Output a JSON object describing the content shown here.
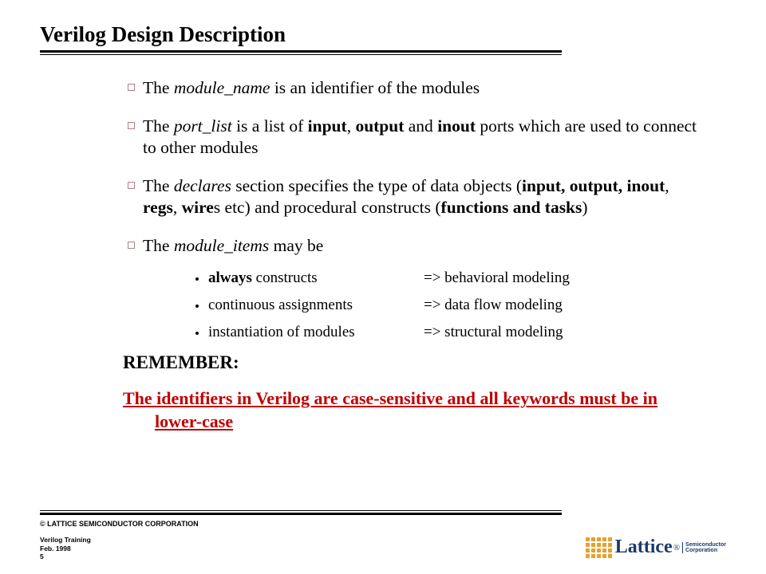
{
  "title": "Verilog Design Description",
  "bullets": [
    {
      "segments": [
        {
          "t": "The ",
          "i": false,
          "b": false
        },
        {
          "t": "module_name",
          "i": true,
          "b": false
        },
        {
          "t": " is an identifier of the modules",
          "i": false,
          "b": false
        }
      ]
    },
    {
      "segments": [
        {
          "t": "The ",
          "i": false,
          "b": false
        },
        {
          "t": "port_list",
          "i": true,
          "b": false
        },
        {
          "t": " is a list of ",
          "i": false,
          "b": false
        },
        {
          "t": "input",
          "i": false,
          "b": true
        },
        {
          "t": ", ",
          "i": false,
          "b": false
        },
        {
          "t": "output",
          "i": false,
          "b": true
        },
        {
          "t": " and ",
          "i": false,
          "b": false
        },
        {
          "t": "inout",
          "i": false,
          "b": true
        },
        {
          "t": " ports which are used to connect to other modules",
          "i": false,
          "b": false
        }
      ]
    },
    {
      "segments": [
        {
          "t": "The ",
          "i": false,
          "b": false
        },
        {
          "t": "declares",
          "i": true,
          "b": false
        },
        {
          "t": " section specifies the type of data objects (",
          "i": false,
          "b": false
        },
        {
          "t": "input, output, inout",
          "i": false,
          "b": true
        },
        {
          "t": ", ",
          "i": false,
          "b": false
        },
        {
          "t": "regs",
          "i": false,
          "b": true
        },
        {
          "t": ", ",
          "i": false,
          "b": false
        },
        {
          "t": "wire",
          "i": false,
          "b": true
        },
        {
          "t": "s etc) and procedural constructs (",
          "i": false,
          "b": false
        },
        {
          "t": "functions and tasks",
          "i": false,
          "b": true
        },
        {
          "t": ")",
          "i": false,
          "b": false
        }
      ]
    },
    {
      "segments": [
        {
          "t": "The ",
          "i": false,
          "b": false
        },
        {
          "t": "module_items",
          "i": true,
          "b": false
        },
        {
          "t": " may be",
          "i": false,
          "b": false
        }
      ]
    }
  ],
  "subitems": [
    {
      "left_bold": "always",
      "left_rest": " constructs",
      "right": "=> behavioral modeling"
    },
    {
      "left_bold": "",
      "left_rest": "continuous assignments",
      "right": "=> data flow modeling"
    },
    {
      "left_bold": "",
      "left_rest": "instantiation of modules",
      "right": "=> structural modeling"
    }
  ],
  "remember": "REMEMBER:",
  "warning": "The  identifiers in Verilog are case-sensitive and all keywords must be in lower-case",
  "footer": {
    "copyright": "© LATTICE SEMICONDUCTOR CORPORATION",
    "line1": "Verilog Training",
    "line2": "Feb.  1998",
    "line3": "5"
  },
  "logo": {
    "text": "Lattice",
    "sub1": "Semiconductor",
    "sub2": "Corporation",
    "grid_color": "#e8a030",
    "text_color": "#1a3a6a"
  },
  "colors": {
    "bullet_border": "#b08080",
    "warning_text": "#c00000",
    "background": "#ffffff",
    "text": "#000000"
  },
  "fonts": {
    "title_size": 27,
    "body_size": 21.5,
    "sub_size": 19,
    "footer_size": 9
  }
}
